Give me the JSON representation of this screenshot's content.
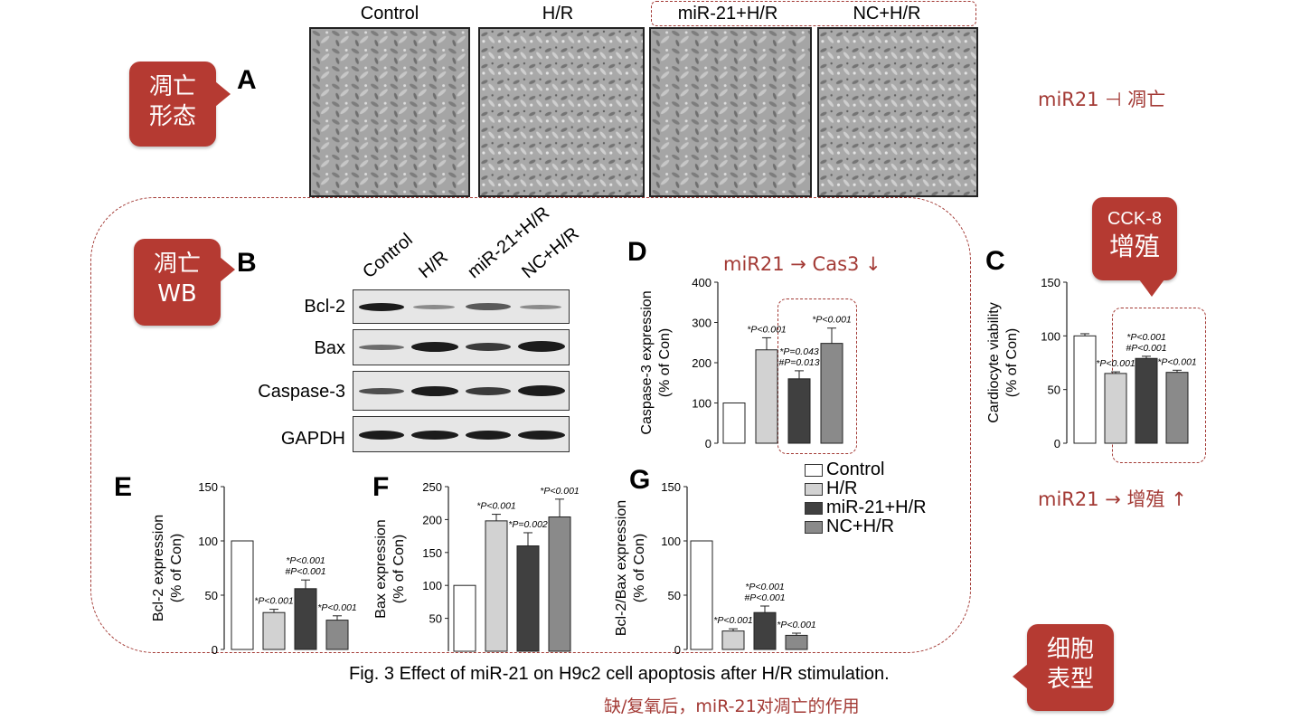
{
  "callouts": {
    "a": {
      "line1": "凋亡",
      "line2": "形态"
    },
    "b": {
      "line1": "凋亡",
      "line2": "WB"
    },
    "c": {
      "line1": "CCK-8",
      "line2": "增殖"
    },
    "cell": {
      "line1": "细胞",
      "line2": "表型"
    }
  },
  "panel_labels": {
    "A": "A",
    "B": "B",
    "C": "C",
    "D": "D",
    "E": "E",
    "F": "F",
    "G": "G"
  },
  "notes": {
    "apoptosis": "miR21 ⊣ 凋亡",
    "cas3": "miR21 → Cas3 ↓",
    "prolif": "miR21 → 增殖 ↑"
  },
  "micrographs": {
    "labels": [
      "Control",
      "H/R",
      "miR-21+H/R",
      "NC+H/R"
    ]
  },
  "western": {
    "columns": [
      "Control",
      "H/R",
      "miR-21+H/R",
      "NC+H/R"
    ],
    "rows": [
      "Bcl-2",
      "Bax",
      "Caspase-3",
      "GAPDH"
    ]
  },
  "legend": {
    "items": [
      "Control",
      "H/R",
      "miR-21+H/R",
      "NC+H/R"
    ]
  },
  "colors": {
    "control": "#ffffff",
    "hr": "#d2d2d2",
    "mir21": "#404040",
    "nc": "#8a8a8a",
    "accent": "#b53a32"
  },
  "caption": "Fig. 3 Effect of miR-21 on H9c2 cell apoptosis after H/R stimulation.",
  "subcaption": "缺/复氧后，miR-21对凋亡的作用",
  "chart_data": [
    {
      "id": "D",
      "type": "bar",
      "categories": [
        "Control",
        "H/R",
        "miR-21+H/R",
        "NC+H/R"
      ],
      "values": [
        100,
        232,
        160,
        248
      ],
      "errors": [
        0,
        30,
        20,
        38
      ],
      "ylabel": [
        "Caspase-3 expression",
        "(% of Con)"
      ],
      "ylim": [
        0,
        400
      ],
      "yticks": [
        0,
        100,
        200,
        300,
        400
      ],
      "annotations": [
        "",
        "*P<0.001",
        "*P=0.043\n#P=0.013",
        "*P<0.001"
      ]
    },
    {
      "id": "C",
      "type": "bar",
      "categories": [
        "Control",
        "H/R",
        "miR-21+H/R",
        "NC+H/R"
      ],
      "values": [
        100,
        65,
        79,
        66
      ],
      "errors": [
        2,
        1.5,
        2,
        2
      ],
      "ylabel": [
        "Cardiocyte viability",
        "(% of Con)"
      ],
      "ylim": [
        0,
        150
      ],
      "yticks": [
        0,
        50,
        100,
        150
      ],
      "annotations": [
        "",
        "*P<0.001",
        "*P<0.001\n#P<0.001",
        "*P<0.001"
      ]
    },
    {
      "id": "E",
      "type": "bar",
      "categories": [
        "Control",
        "H/R",
        "miR-21+H/R",
        "NC+H/R"
      ],
      "values": [
        100,
        34,
        56,
        27
      ],
      "errors": [
        0,
        3,
        8,
        4
      ],
      "ylabel": [
        "Bcl-2  expression",
        "(% of Con)"
      ],
      "ylim": [
        0,
        150
      ],
      "yticks": [
        0,
        50,
        100,
        150
      ],
      "annotations": [
        "",
        "*P<0.001",
        "*P<0.001\n#P<0.001",
        "*P<0.001"
      ]
    },
    {
      "id": "F",
      "type": "bar",
      "categories": [
        "Control",
        "H/R",
        "miR-21+H/R",
        "NC+H/R"
      ],
      "values": [
        100,
        198,
        160,
        204
      ],
      "errors": [
        0,
        10,
        20,
        27
      ],
      "ylabel": [
        "Bax  expression",
        "(% of Con)"
      ],
      "ylim": [
        0,
        250
      ],
      "yticks": [
        50,
        100,
        150,
        200,
        250
      ],
      "annotations": [
        "",
        "*P<0.001",
        "*P=0.002",
        "*P<0.001"
      ]
    },
    {
      "id": "G",
      "type": "bar",
      "categories": [
        "Control",
        "H/R",
        "miR-21+H/R",
        "NC+H/R"
      ],
      "values": [
        100,
        17,
        34,
        13
      ],
      "errors": [
        0,
        2,
        6,
        2
      ],
      "ylabel": [
        "Bcl-2/Bax  expression",
        "(% of Con)"
      ],
      "ylim": [
        0,
        150
      ],
      "yticks": [
        0,
        50,
        100,
        150
      ],
      "annotations": [
        "",
        "*P<0.001",
        "*P<0.001\n#P<0.001",
        "*P<0.001"
      ]
    }
  ]
}
